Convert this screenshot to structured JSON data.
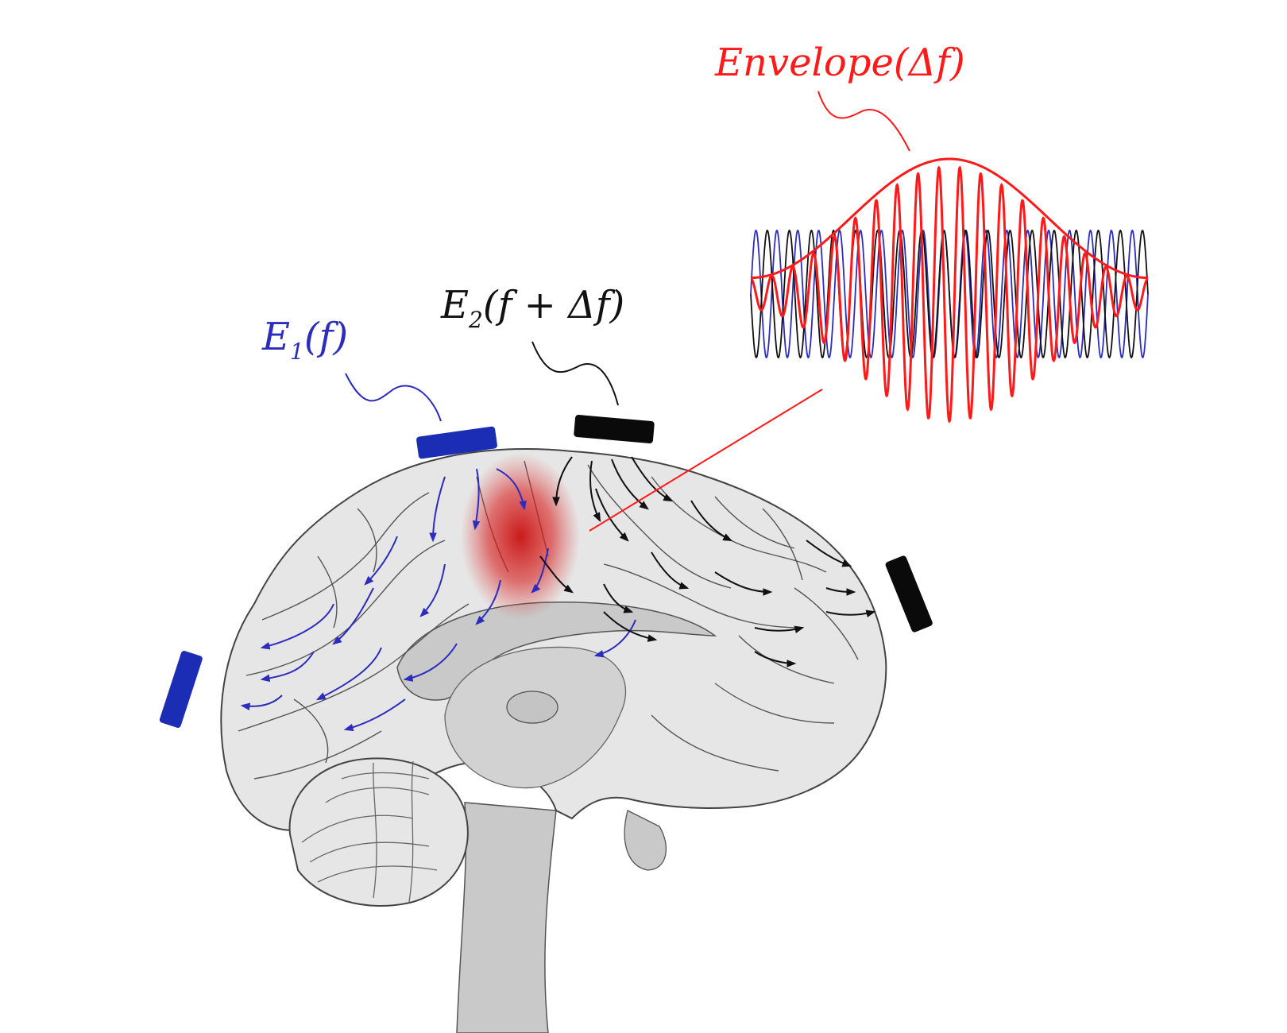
{
  "labels": {
    "envelope": {
      "text": "Envelope",
      "arg": "(Δf)"
    },
    "e1": {
      "base": "E",
      "sub": "1",
      "arg": "(f)"
    },
    "e2": {
      "base": "E",
      "sub": "2",
      "arg": "(f + Δf)"
    }
  },
  "colors": {
    "e1": "#2c2cbe",
    "e2": "#111111",
    "envelope": "#ff1a1a",
    "electrode_blue": "#1a2db4",
    "electrode_black": "#0a0a0a",
    "brain_fill": "#e6e6e6",
    "deep_fill": "#c9c9c9",
    "hotspot": "#d01010"
  },
  "icons": {
    "brain": "brain-sagittal-icon",
    "electrode": "electrode-pad-icon"
  }
}
